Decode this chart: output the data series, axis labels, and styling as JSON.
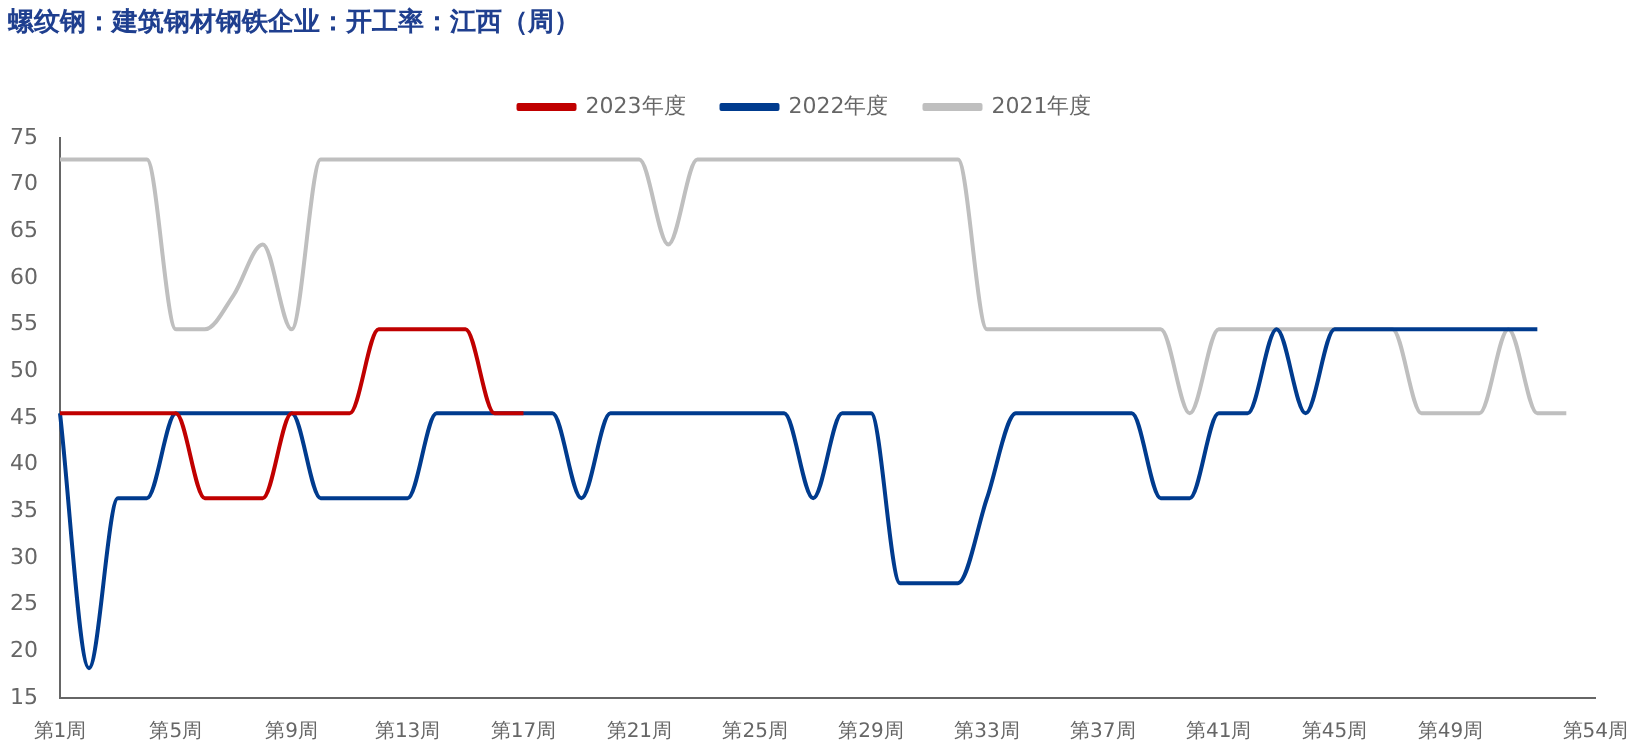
{
  "chart_data": {
    "type": "line",
    "title": "螺纹钢：建筑钢材钢铁企业：开工率：江西（周）",
    "categories": [
      "第1周",
      null,
      null,
      null,
      "第5周",
      null,
      null,
      null,
      "第9周",
      null,
      null,
      null,
      "第13周",
      null,
      null,
      null,
      "第17周",
      null,
      null,
      null,
      "第21周",
      null,
      null,
      null,
      "第25周",
      null,
      null,
      null,
      "第29周",
      null,
      null,
      null,
      "第33周",
      null,
      null,
      null,
      "第37周",
      null,
      null,
      null,
      "第41周",
      null,
      null,
      null,
      "第45周",
      null,
      null,
      null,
      "第49周",
      null,
      null,
      null,
      null,
      "第54周"
    ],
    "series": [
      {
        "name": "2023年度",
        "color": "#c00000",
        "values": [
          45.5,
          45.5,
          45.5,
          45.5,
          45.5,
          36.4,
          36.4,
          36.4,
          45.5,
          45.5,
          45.5,
          54.5,
          54.5,
          54.5,
          54.5,
          45.5,
          45.5,
          null,
          null,
          null,
          null,
          null,
          null,
          null,
          null,
          null,
          null,
          null,
          null,
          null,
          null,
          null,
          null,
          null,
          null,
          null,
          null,
          null,
          null,
          null,
          null,
          null,
          null,
          null,
          null,
          null,
          null,
          null,
          null,
          null,
          null,
          null,
          null,
          null
        ]
      },
      {
        "name": "2022年度",
        "color": "#003b8e",
        "values": [
          45.5,
          18.2,
          36.4,
          36.4,
          45.5,
          45.5,
          45.5,
          45.5,
          45.5,
          36.4,
          36.4,
          36.4,
          36.4,
          45.5,
          45.5,
          45.5,
          45.5,
          45.5,
          36.4,
          45.5,
          45.5,
          45.5,
          45.5,
          45.5,
          45.5,
          45.5,
          36.4,
          45.5,
          45.5,
          27.3,
          27.3,
          27.3,
          36.4,
          45.5,
          45.5,
          45.5,
          45.5,
          45.5,
          36.4,
          36.4,
          45.5,
          45.5,
          54.5,
          45.5,
          54.5,
          54.5,
          54.5,
          54.5,
          54.5,
          54.5,
          54.5,
          54.5,
          null,
          null
        ]
      },
      {
        "name": "2021年度",
        "color": "#bfbfbf",
        "values": [
          72.7,
          72.7,
          72.7,
          72.7,
          54.5,
          54.5,
          58.2,
          63.6,
          54.5,
          72.7,
          72.7,
          72.7,
          72.7,
          72.7,
          72.7,
          72.7,
          72.7,
          72.7,
          72.7,
          72.7,
          72.7,
          63.6,
          72.7,
          72.7,
          72.7,
          72.7,
          72.7,
          72.7,
          72.7,
          72.7,
          72.7,
          72.7,
          54.5,
          54.5,
          54.5,
          54.5,
          54.5,
          54.5,
          54.5,
          45.5,
          54.5,
          54.5,
          54.5,
          54.5,
          54.5,
          54.5,
          54.5,
          45.5,
          45.5,
          45.5,
          54.5,
          45.5,
          45.5,
          null
        ]
      }
    ],
    "ylim": [
      15,
      75
    ],
    "yticks": [
      15,
      20,
      25,
      30,
      35,
      40,
      45,
      50,
      55,
      60,
      65,
      70,
      75
    ],
    "grid": false,
    "legend": "top",
    "marker": "none",
    "line_style": "solid"
  }
}
